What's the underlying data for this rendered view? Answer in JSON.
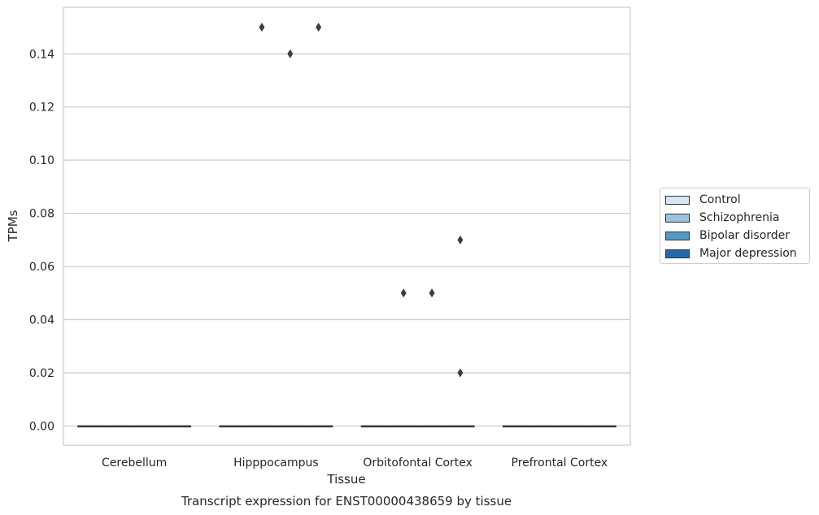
{
  "chart_data": {
    "type": "box",
    "title": "Transcript expression for ENST00000438659 by tissue",
    "xlabel": "Tissue",
    "ylabel": "TPMs",
    "ylim": [
      -0.0072,
      0.1575
    ],
    "yticks": [
      "0.00",
      "0.02",
      "0.04",
      "0.06",
      "0.08",
      "0.10",
      "0.12",
      "0.14"
    ],
    "grid": true,
    "legend_position": "right",
    "categories": [
      "Cerebellum",
      "Hipppocampus",
      "Orbitofontal Cortex",
      "Prefrontal Cortex"
    ],
    "series": [
      {
        "name": "Control",
        "color": "#d6e5f3",
        "boxes": [
          {
            "category": "Cerebellum",
            "median": 0.0,
            "q1": 0.0,
            "q3": 0.0,
            "outliers": []
          },
          {
            "category": "Hipppocampus",
            "median": 0.0,
            "q1": 0.0,
            "q3": 0.0,
            "outliers": []
          },
          {
            "category": "Orbitofontal Cortex",
            "median": 0.0,
            "q1": 0.0,
            "q3": 0.0,
            "outliers": []
          },
          {
            "category": "Prefrontal Cortex",
            "median": 0.0,
            "q1": 0.0,
            "q3": 0.0,
            "outliers": []
          }
        ]
      },
      {
        "name": "Schizophrenia",
        "color": "#9ac4de",
        "boxes": [
          {
            "category": "Cerebellum",
            "median": 0.0,
            "q1": 0.0,
            "q3": 0.0,
            "outliers": []
          },
          {
            "category": "Hipppocampus",
            "median": 0.0,
            "q1": 0.0,
            "q3": 0.0,
            "outliers": [
              0.15
            ]
          },
          {
            "category": "Orbitofontal Cortex",
            "median": 0.0,
            "q1": 0.0,
            "q3": 0.0,
            "outliers": [
              0.05
            ]
          },
          {
            "category": "Prefrontal Cortex",
            "median": 0.0,
            "q1": 0.0,
            "q3": 0.0,
            "outliers": []
          }
        ]
      },
      {
        "name": "Bipolar disorder",
        "color": "#5697c6",
        "boxes": [
          {
            "category": "Cerebellum",
            "median": 0.0,
            "q1": 0.0,
            "q3": 0.0,
            "outliers": []
          },
          {
            "category": "Hipppocampus",
            "median": 0.0,
            "q1": 0.0,
            "q3": 0.0,
            "outliers": [
              0.14
            ]
          },
          {
            "category": "Orbitofontal Cortex",
            "median": 0.0,
            "q1": 0.0,
            "q3": 0.0,
            "outliers": [
              0.05
            ]
          },
          {
            "category": "Prefrontal Cortex",
            "median": 0.0,
            "q1": 0.0,
            "q3": 0.0,
            "outliers": []
          }
        ]
      },
      {
        "name": "Major depression",
        "color": "#2468ab",
        "boxes": [
          {
            "category": "Cerebellum",
            "median": 0.0,
            "q1": 0.0,
            "q3": 0.0,
            "outliers": []
          },
          {
            "category": "Hipppocampus",
            "median": 0.0,
            "q1": 0.0,
            "q3": 0.0,
            "outliers": [
              0.15
            ]
          },
          {
            "category": "Orbitofontal Cortex",
            "median": 0.0,
            "q1": 0.0,
            "q3": 0.0,
            "outliers": [
              0.07,
              0.02
            ]
          },
          {
            "category": "Prefrontal Cortex",
            "median": 0.0,
            "q1": 0.0,
            "q3": 0.0,
            "outliers": []
          }
        ]
      }
    ]
  }
}
